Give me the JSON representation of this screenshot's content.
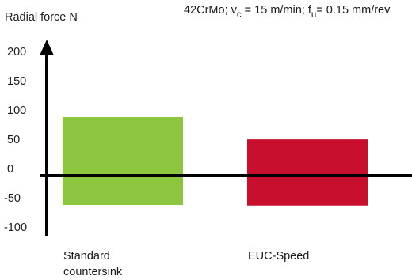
{
  "chart_data": {
    "type": "bar",
    "title": "",
    "ylabel": "Radial force N",
    "xlabel": "",
    "annotation": {
      "material": "42CrMo; v",
      "v_sub": "c",
      "v_value": " = 15 m/min;  f",
      "f_sub": "u",
      "f_value": "= 0.15 mm/rev"
    },
    "categories": [
      "Standard countersink",
      "EUC-Speed"
    ],
    "category_lines": [
      [
        "Standard",
        "countersink"
      ],
      [
        "EUC-Speed"
      ]
    ],
    "series": [
      {
        "ranges": [
          [
            -50,
            100
          ],
          [
            -51,
            62
          ]
        ],
        "colors": [
          "#8cc63f",
          "#c8102e"
        ]
      }
    ],
    "yticks": [
      "200",
      "150",
      "100",
      "50",
      "0",
      "-50",
      "-100"
    ],
    "ytick_values": [
      200,
      150,
      100,
      50,
      0,
      -50,
      -100
    ],
    "ylim": [
      -100,
      200
    ],
    "grid": false,
    "legend": "none"
  }
}
